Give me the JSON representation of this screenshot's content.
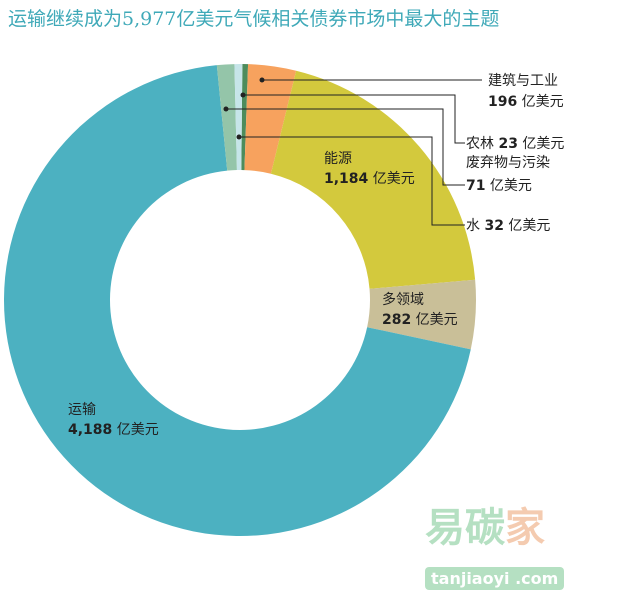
{
  "chart_data": {
    "type": "pie",
    "donut": true,
    "title": "运输继续成为5,977亿美元气候相关债券市场中最大的主题",
    "unit": "亿美元",
    "slices": [
      {
        "label": "农林",
        "value": 23,
        "value_text": "23",
        "color": "#4d8c5c"
      },
      {
        "label": "建筑与工业",
        "value": 196,
        "value_text": "196",
        "color": "#f7a25e"
      },
      {
        "label": "能源",
        "value": 1184,
        "value_text": "1,184",
        "color": "#d3c93d"
      },
      {
        "label": "多领域",
        "value": 282,
        "value_text": "282",
        "color": "#c9bf98"
      },
      {
        "label": "运输",
        "value": 4188,
        "value_text": "4,188",
        "color": "#4cb1c1"
      },
      {
        "label": "废弃物与污染",
        "value": 71,
        "value_text": "71",
        "color": "#94c5a9"
      },
      {
        "label": "水",
        "value": 32,
        "value_text": "32",
        "color": "#c6e5e9"
      }
    ]
  },
  "watermark": {
    "text1": "易碳",
    "text2": "家",
    "badge": "tanjiaoyi .com"
  }
}
